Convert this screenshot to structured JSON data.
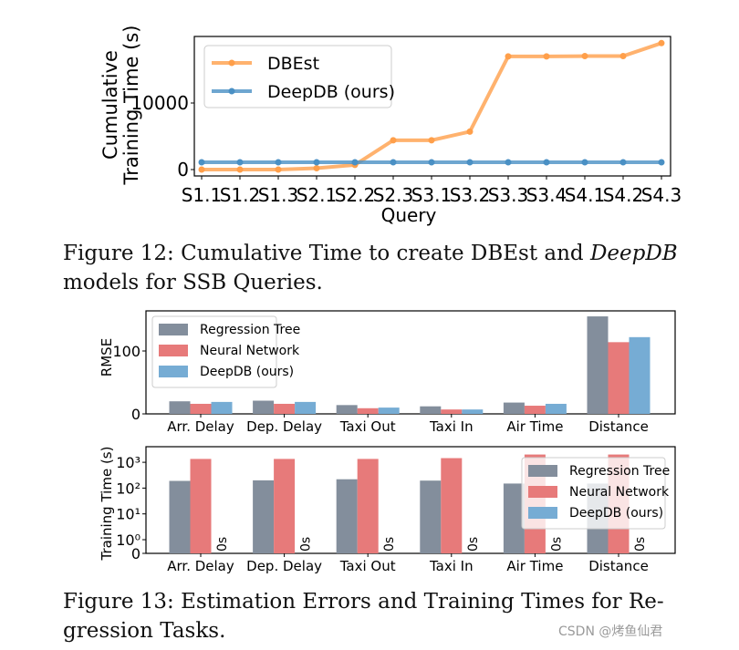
{
  "figure12": {
    "caption_line1_pre": "Figure 12: Cumulative Time to create DBEst and ",
    "caption_line1_em": "DeepDB",
    "caption_line2": "models for SSB Queries."
  },
  "figure13": {
    "caption_line1": "Figure 13: Estimation Errors and Training Times for Re-",
    "caption_line2": "gression Tasks."
  },
  "watermark": "CSDN @烤鱼仙君",
  "chart_data": [
    {
      "type": "line",
      "ylabel_line1": "Cumulative",
      "ylabel_line2": "Training Time (s)",
      "xlabel": "Query",
      "categories": [
        "S1.1",
        "S1.2",
        "S1.3",
        "S2.1",
        "S2.2",
        "S2.3",
        "S3.1",
        "S3.2",
        "S3.3",
        "S3.4",
        "S4.1",
        "S4.2",
        "S4.3"
      ],
      "yticks": [
        0,
        10000
      ],
      "ytick_labels": [
        "0",
        "10000"
      ],
      "ylim": [
        -500,
        20000
      ],
      "legend": "top-left",
      "grid": false,
      "series": [
        {
          "name": "DBEst",
          "color": "#ff9f4a",
          "values": [
            0,
            0,
            0,
            200,
            700,
            4400,
            4400,
            5700,
            17000,
            17000,
            17050,
            17050,
            19000
          ]
        },
        {
          "name": "DeepDB (ours)",
          "color": "#4a90c4",
          "values": [
            1100,
            1100,
            1100,
            1100,
            1100,
            1100,
            1100,
            1100,
            1100,
            1100,
            1100,
            1100,
            1100
          ]
        }
      ]
    },
    {
      "type": "bar",
      "ylabel": "RMSE",
      "categories": [
        "Arr. Delay",
        "Dep. Delay",
        "Taxi Out",
        "Taxi In",
        "Air Time",
        "Distance"
      ],
      "yticks": [
        0,
        100
      ],
      "ytick_labels": [
        "0",
        "100"
      ],
      "ylim": [
        0,
        162
      ],
      "legend": "top-left",
      "grid": false,
      "series": [
        {
          "name": "Regression Tree",
          "color": "#838e9c",
          "values": [
            20,
            21,
            14,
            12,
            18,
            155
          ]
        },
        {
          "name": "Neural Network",
          "color": "#e77a7a",
          "values": [
            16,
            16,
            9,
            7,
            13,
            114
          ]
        },
        {
          "name": "DeepDB (ours)",
          "color": "#76acd4",
          "values": [
            19,
            19,
            10,
            7,
            16,
            122
          ]
        }
      ]
    },
    {
      "type": "bar",
      "ylabel": "Training Time (s)",
      "yscale": "symlog",
      "categories": [
        "Arr. Delay",
        "Dep. Delay",
        "Taxi Out",
        "Taxi In",
        "Air Time",
        "Distance"
      ],
      "yticks": [
        0,
        1,
        10,
        100,
        1000
      ],
      "ytick_labels": [
        "0",
        "10⁰",
        "10¹",
        "10²",
        "10³"
      ],
      "ylim": [
        0,
        3000
      ],
      "legend": "top-right",
      "grid": false,
      "bar_annotation": "0s",
      "series": [
        {
          "name": "Regression Tree",
          "color": "#838e9c",
          "values": [
            190,
            200,
            220,
            195,
            150,
            150
          ]
        },
        {
          "name": "Neural Network",
          "color": "#e77a7a",
          "values": [
            1350,
            1350,
            1350,
            1450,
            2000,
            2000
          ]
        },
        {
          "name": "DeepDB (ours)",
          "color": "#76acd4",
          "values": [
            0,
            0,
            0,
            0,
            0,
            0
          ]
        }
      ]
    }
  ]
}
